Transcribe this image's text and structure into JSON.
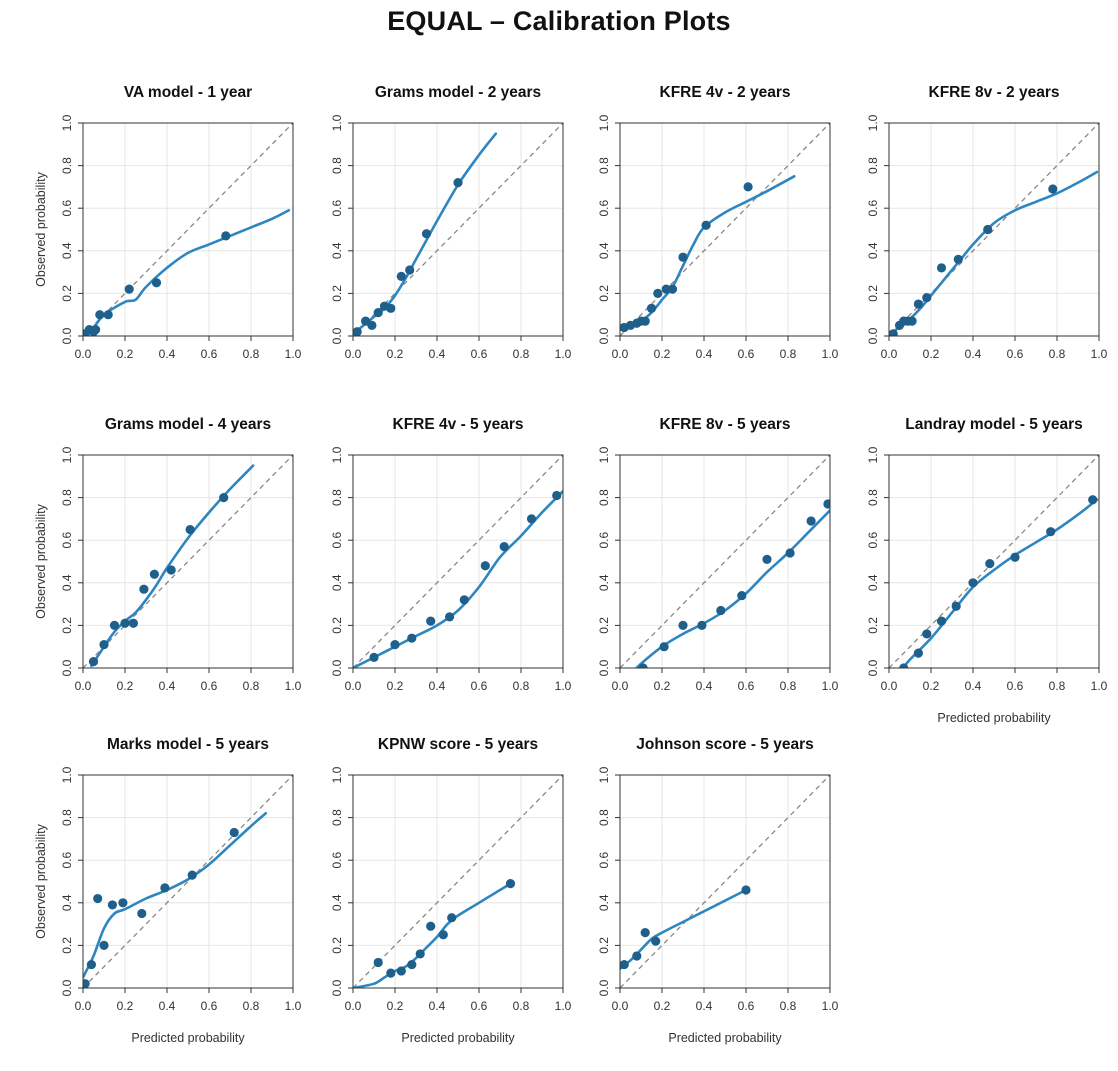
{
  "title": "EQUAL – Calibration Plots",
  "colors": {
    "series": "#2e86c1",
    "points": "#1f5f8b",
    "reference": "#888888",
    "grid": "#e6e6e6",
    "frame": "#333333"
  },
  "chart_data": [
    {
      "type": "scatter",
      "title": "VA model - 1 year",
      "xlabel": "",
      "ylabel": "Observed probability",
      "xlim": [
        0,
        1
      ],
      "ylim": [
        0,
        1
      ],
      "ticks": [
        "0.0",
        "0.2",
        "0.4",
        "0.6",
        "0.8",
        "1.0"
      ],
      "grid": true,
      "points": {
        "x": [
          0.01,
          0.03,
          0.05,
          0.06,
          0.08,
          0.12,
          0.22,
          0.35,
          0.68
        ],
        "y": [
          0.01,
          0.03,
          0.02,
          0.03,
          0.1,
          0.1,
          0.22,
          0.25,
          0.47
        ]
      },
      "curve": {
        "x": [
          0.0,
          0.05,
          0.1,
          0.2,
          0.25,
          0.3,
          0.4,
          0.5,
          0.6,
          0.7,
          0.8,
          0.9,
          0.98
        ],
        "y": [
          0.01,
          0.04,
          0.1,
          0.16,
          0.17,
          0.23,
          0.32,
          0.39,
          0.43,
          0.47,
          0.51,
          0.55,
          0.59
        ]
      }
    },
    {
      "type": "scatter",
      "title": "Grams model - 2 years",
      "xlabel": "",
      "ylabel": "",
      "xlim": [
        0,
        1
      ],
      "ylim": [
        0,
        1
      ],
      "ticks": [
        "0.0",
        "0.2",
        "0.4",
        "0.6",
        "0.8",
        "1.0"
      ],
      "grid": true,
      "points": {
        "x": [
          0.02,
          0.06,
          0.09,
          0.12,
          0.15,
          0.18,
          0.23,
          0.27,
          0.35,
          0.5
        ],
        "y": [
          0.02,
          0.07,
          0.05,
          0.11,
          0.14,
          0.13,
          0.28,
          0.31,
          0.48,
          0.72
        ]
      },
      "curve": {
        "x": [
          0.0,
          0.05,
          0.1,
          0.15,
          0.2,
          0.25,
          0.3,
          0.35,
          0.4,
          0.5,
          0.6,
          0.68
        ],
        "y": [
          0.01,
          0.05,
          0.09,
          0.13,
          0.19,
          0.27,
          0.36,
          0.45,
          0.54,
          0.71,
          0.85,
          0.95
        ]
      }
    },
    {
      "type": "scatter",
      "title": "KFRE 4v - 2 years",
      "xlabel": "",
      "ylabel": "",
      "xlim": [
        0,
        1
      ],
      "ylim": [
        0,
        1
      ],
      "ticks": [
        "0.0",
        "0.2",
        "0.4",
        "0.6",
        "0.8",
        "1.0"
      ],
      "grid": true,
      "points": {
        "x": [
          0.02,
          0.05,
          0.08,
          0.1,
          0.12,
          0.15,
          0.18,
          0.22,
          0.25,
          0.3,
          0.41,
          0.61
        ],
        "y": [
          0.04,
          0.05,
          0.06,
          0.07,
          0.07,
          0.13,
          0.2,
          0.22,
          0.22,
          0.37,
          0.52,
          0.7
        ]
      },
      "curve": {
        "x": [
          0.0,
          0.05,
          0.1,
          0.15,
          0.2,
          0.25,
          0.3,
          0.35,
          0.4,
          0.5,
          0.6,
          0.7,
          0.83
        ],
        "y": [
          0.03,
          0.05,
          0.07,
          0.11,
          0.17,
          0.23,
          0.33,
          0.43,
          0.51,
          0.58,
          0.63,
          0.68,
          0.75
        ]
      }
    },
    {
      "type": "scatter",
      "title": "KFRE 8v - 2 years",
      "xlabel": "",
      "ylabel": "",
      "xlim": [
        0,
        1
      ],
      "ylim": [
        0,
        1
      ],
      "ticks": [
        "0.0",
        "0.2",
        "0.4",
        "0.6",
        "0.8",
        "1.0"
      ],
      "grid": true,
      "points": {
        "x": [
          0.02,
          0.05,
          0.07,
          0.09,
          0.11,
          0.14,
          0.18,
          0.25,
          0.33,
          0.47,
          0.78
        ],
        "y": [
          0.01,
          0.05,
          0.07,
          0.07,
          0.07,
          0.15,
          0.18,
          0.32,
          0.36,
          0.5,
          0.69
        ]
      },
      "curve": {
        "x": [
          0.0,
          0.05,
          0.1,
          0.15,
          0.2,
          0.25,
          0.3,
          0.35,
          0.4,
          0.5,
          0.6,
          0.7,
          0.8,
          0.9,
          0.99
        ],
        "y": [
          0.01,
          0.04,
          0.08,
          0.13,
          0.19,
          0.25,
          0.31,
          0.37,
          0.43,
          0.53,
          0.59,
          0.63,
          0.67,
          0.72,
          0.77
        ]
      }
    },
    {
      "type": "scatter",
      "title": "Grams model - 4 years",
      "xlabel": "",
      "ylabel": "Observed probability",
      "xlim": [
        0,
        1
      ],
      "ylim": [
        0,
        1
      ],
      "ticks": [
        "0.0",
        "0.2",
        "0.4",
        "0.6",
        "0.8",
        "1.0"
      ],
      "grid": true,
      "points": {
        "x": [
          0.05,
          0.1,
          0.15,
          0.2,
          0.24,
          0.29,
          0.34,
          0.42,
          0.51,
          0.67
        ],
        "y": [
          0.03,
          0.11,
          0.2,
          0.21,
          0.21,
          0.37,
          0.44,
          0.46,
          0.65,
          0.8
        ]
      },
      "curve": {
        "x": [
          0.04,
          0.1,
          0.15,
          0.2,
          0.25,
          0.3,
          0.35,
          0.4,
          0.5,
          0.6,
          0.7,
          0.81
        ],
        "y": [
          0.01,
          0.1,
          0.17,
          0.22,
          0.26,
          0.32,
          0.39,
          0.47,
          0.61,
          0.73,
          0.84,
          0.95
        ]
      }
    },
    {
      "type": "scatter",
      "title": "KFRE 4v - 5 years",
      "xlabel": "",
      "ylabel": "",
      "xlim": [
        0,
        1
      ],
      "ylim": [
        0,
        1
      ],
      "ticks": [
        "0.0",
        "0.2",
        "0.4",
        "0.6",
        "0.8",
        "1.0"
      ],
      "grid": true,
      "points": {
        "x": [
          0.1,
          0.2,
          0.28,
          0.37,
          0.46,
          0.53,
          0.63,
          0.72,
          0.85,
          0.97
        ],
        "y": [
          0.05,
          0.11,
          0.14,
          0.22,
          0.24,
          0.32,
          0.48,
          0.57,
          0.7,
          0.81
        ]
      },
      "curve": {
        "x": [
          0.0,
          0.1,
          0.2,
          0.3,
          0.4,
          0.5,
          0.6,
          0.7,
          0.8,
          0.9,
          1.0
        ],
        "y": [
          0.0,
          0.05,
          0.1,
          0.15,
          0.2,
          0.27,
          0.38,
          0.52,
          0.62,
          0.73,
          0.83
        ]
      }
    },
    {
      "type": "scatter",
      "title": "KFRE 8v - 5 years",
      "xlabel": "",
      "ylabel": "",
      "xlim": [
        0,
        1
      ],
      "ylim": [
        0,
        1
      ],
      "ticks": [
        "0.0",
        "0.2",
        "0.4",
        "0.6",
        "0.8",
        "1.0"
      ],
      "grid": true,
      "points": {
        "x": [
          0.11,
          0.21,
          0.3,
          0.39,
          0.48,
          0.58,
          0.7,
          0.81,
          0.91,
          0.99
        ],
        "y": [
          0.0,
          0.1,
          0.2,
          0.2,
          0.27,
          0.34,
          0.51,
          0.54,
          0.69,
          0.77
        ]
      },
      "curve": {
        "x": [
          0.05,
          0.1,
          0.2,
          0.3,
          0.4,
          0.5,
          0.6,
          0.7,
          0.8,
          0.9,
          1.0
        ],
        "y": [
          -0.03,
          0.02,
          0.1,
          0.16,
          0.21,
          0.27,
          0.35,
          0.45,
          0.54,
          0.64,
          0.74
        ]
      }
    },
    {
      "type": "scatter",
      "title": "Landray model - 5 years",
      "xlabel": "Predicted probability",
      "ylabel": "",
      "xlim": [
        0,
        1
      ],
      "ylim": [
        0,
        1
      ],
      "ticks": [
        "0.0",
        "0.2",
        "0.4",
        "0.6",
        "0.8",
        "1.0"
      ],
      "grid": true,
      "points": {
        "x": [
          0.07,
          0.14,
          0.18,
          0.25,
          0.32,
          0.4,
          0.48,
          0.6,
          0.77,
          0.97
        ],
        "y": [
          0.0,
          0.07,
          0.16,
          0.22,
          0.29,
          0.4,
          0.49,
          0.52,
          0.64,
          0.79
        ]
      },
      "curve": {
        "x": [
          0.05,
          0.1,
          0.2,
          0.3,
          0.4,
          0.5,
          0.6,
          0.7,
          0.8,
          0.9,
          0.99
        ],
        "y": [
          -0.02,
          0.04,
          0.14,
          0.26,
          0.38,
          0.46,
          0.53,
          0.59,
          0.65,
          0.72,
          0.79
        ]
      }
    },
    {
      "type": "scatter",
      "title": "Marks model - 5 years",
      "xlabel": "Predicted probability",
      "ylabel": "Observed probability",
      "xlim": [
        0,
        1
      ],
      "ylim": [
        0,
        1
      ],
      "ticks": [
        "0.0",
        "0.2",
        "0.4",
        "0.6",
        "0.8",
        "1.0"
      ],
      "grid": true,
      "points": {
        "x": [
          0.01,
          0.04,
          0.07,
          0.1,
          0.14,
          0.19,
          0.28,
          0.39,
          0.52,
          0.72
        ],
        "y": [
          0.02,
          0.11,
          0.42,
          0.2,
          0.39,
          0.4,
          0.35,
          0.47,
          0.53,
          0.73
        ]
      },
      "curve": {
        "x": [
          0.0,
          0.05,
          0.1,
          0.15,
          0.2,
          0.3,
          0.4,
          0.5,
          0.6,
          0.7,
          0.8,
          0.87
        ],
        "y": [
          0.05,
          0.15,
          0.28,
          0.35,
          0.37,
          0.42,
          0.46,
          0.51,
          0.58,
          0.67,
          0.76,
          0.82
        ]
      }
    },
    {
      "type": "scatter",
      "title": "KPNW score - 5 years",
      "xlabel": "Predicted probability",
      "ylabel": "",
      "xlim": [
        0,
        1
      ],
      "ylim": [
        0,
        1
      ],
      "ticks": [
        "0.0",
        "0.2",
        "0.4",
        "0.6",
        "0.8",
        "1.0"
      ],
      "grid": true,
      "points": {
        "x": [
          0.12,
          0.18,
          0.23,
          0.28,
          0.32,
          0.37,
          0.43,
          0.47,
          0.75
        ],
        "y": [
          0.12,
          0.07,
          0.08,
          0.11,
          0.16,
          0.29,
          0.25,
          0.33,
          0.49
        ]
      },
      "curve": {
        "x": [
          0.0,
          0.1,
          0.15,
          0.2,
          0.25,
          0.3,
          0.35,
          0.4,
          0.45,
          0.5,
          0.6,
          0.7,
          0.75
        ],
        "y": [
          0.0,
          0.02,
          0.05,
          0.08,
          0.1,
          0.14,
          0.19,
          0.24,
          0.3,
          0.34,
          0.4,
          0.46,
          0.49
        ]
      }
    },
    {
      "type": "scatter",
      "title": "Johnson score - 5 years",
      "xlabel": "Predicted probability",
      "ylabel": "",
      "xlim": [
        0,
        1
      ],
      "ylim": [
        0,
        1
      ],
      "ticks": [
        "0.0",
        "0.2",
        "0.4",
        "0.6",
        "0.8",
        "1.0"
      ],
      "grid": true,
      "points": {
        "x": [
          0.02,
          0.08,
          0.12,
          0.17,
          0.6
        ],
        "y": [
          0.11,
          0.15,
          0.26,
          0.22,
          0.46
        ]
      },
      "curve": {
        "x": [
          0.0,
          0.05,
          0.1,
          0.15,
          0.2,
          0.3,
          0.4,
          0.5,
          0.6
        ],
        "y": [
          0.09,
          0.13,
          0.18,
          0.23,
          0.26,
          0.31,
          0.36,
          0.41,
          0.46
        ]
      }
    }
  ]
}
